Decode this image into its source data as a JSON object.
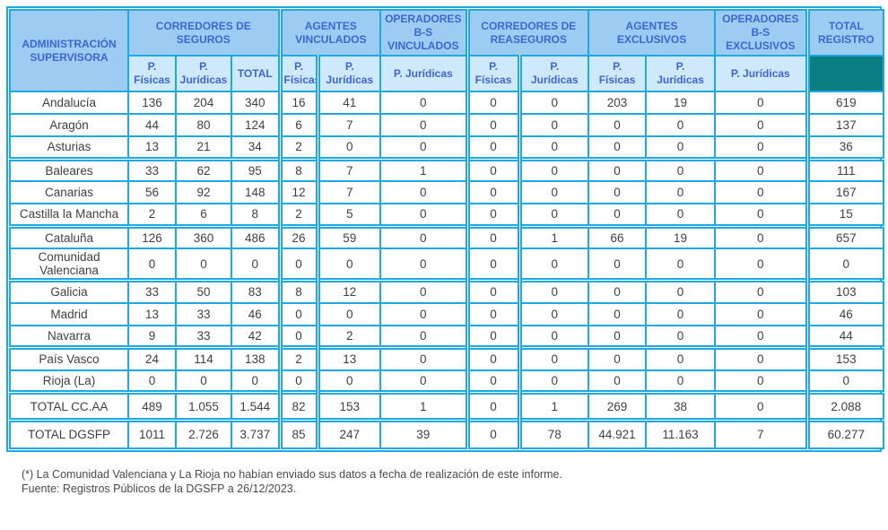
{
  "table": {
    "corner_label": "ADMINISTRACIÓN\nSUPERVISORA",
    "groups": [
      {
        "label": "CORREDORES DE\nSEGUROS",
        "cols": [
          "P.\nFísicas",
          "P.\nJurídicas",
          "TOTAL"
        ]
      },
      {
        "label": "AGENTES\nVINCULADOS",
        "cols": [
          "P.\nFísicas",
          "P.\nJurídicas"
        ]
      },
      {
        "label": "OPERADORES\nB-S\nVINCULADOS",
        "cols": [
          "P. Jurídicas"
        ]
      },
      {
        "label": "CORREDORES DE\nREASEGUROS",
        "cols": [
          "P.\nFísicas",
          "P.\nJurídicas"
        ]
      },
      {
        "label": "AGENTES\nEXCLUSIVOS",
        "cols": [
          "P.\nFísicas",
          "P.\nJurídicas"
        ]
      },
      {
        "label": "OPERADORES\nB-S\nEXCLUSIVOS",
        "cols": [
          "P. Jurídicas"
        ]
      },
      {
        "label": "TOTAL\nREGISTRO",
        "cols": []
      }
    ],
    "rows": [
      {
        "label": "Andalucía",
        "values": [
          "136",
          "204",
          "340",
          "16",
          "41",
          "0",
          "0",
          "0",
          "203",
          "19",
          "0",
          "619"
        ]
      },
      {
        "label": "Aragón",
        "values": [
          "44",
          "80",
          "124",
          "6",
          "7",
          "0",
          "0",
          "0",
          "0",
          "0",
          "0",
          "137"
        ]
      },
      {
        "label": "Asturias",
        "values": [
          "13",
          "21",
          "34",
          "2",
          "0",
          "0",
          "0",
          "0",
          "0",
          "0",
          "0",
          "36"
        ]
      },
      {
        "label": "Baleares",
        "values": [
          "33",
          "62",
          "95",
          "8",
          "7",
          "1",
          "0",
          "0",
          "0",
          "0",
          "0",
          "111"
        ]
      },
      {
        "label": "Canarias",
        "values": [
          "56",
          "92",
          "148",
          "12",
          "7",
          "0",
          "0",
          "0",
          "0",
          "0",
          "0",
          "167"
        ]
      },
      {
        "label": "Castilla la Mancha",
        "values": [
          "2",
          "6",
          "8",
          "2",
          "5",
          "0",
          "0",
          "0",
          "0",
          "0",
          "0",
          "15"
        ]
      },
      {
        "label": "Cataluña",
        "values": [
          "126",
          "360",
          "486",
          "26",
          "59",
          "0",
          "0",
          "1",
          "66",
          "19",
          "0",
          "657"
        ]
      },
      {
        "label": "Comunidad\nValenciana",
        "values": [
          "0",
          "0",
          "0",
          "0",
          "0",
          "0",
          "0",
          "0",
          "0",
          "0",
          "0",
          "0"
        ]
      },
      {
        "label": "Galicia",
        "values": [
          "33",
          "50",
          "83",
          "8",
          "12",
          "0",
          "0",
          "0",
          "0",
          "0",
          "0",
          "103"
        ]
      },
      {
        "label": "Madrid",
        "values": [
          "13",
          "33",
          "46",
          "0",
          "0",
          "0",
          "0",
          "0",
          "0",
          "0",
          "0",
          "46"
        ]
      },
      {
        "label": "Navarra",
        "values": [
          "9",
          "33",
          "42",
          "0",
          "2",
          "0",
          "0",
          "0",
          "0",
          "0",
          "0",
          "44"
        ]
      },
      {
        "label": "País Vasco",
        "values": [
          "24",
          "114",
          "138",
          "2",
          "13",
          "0",
          "0",
          "0",
          "0",
          "0",
          "0",
          "153"
        ]
      },
      {
        "label": "Rioja (La)",
        "values": [
          "0",
          "0",
          "0",
          "0",
          "0",
          "0",
          "0",
          "0",
          "0",
          "0",
          "0",
          "0"
        ]
      },
      {
        "label": "TOTAL CC.AA",
        "values": [
          "489",
          "1.055",
          "1.544",
          "82",
          "153",
          "1",
          "0",
          "1",
          "269",
          "38",
          "0",
          "2.088"
        ]
      },
      {
        "label": "TOTAL DGSFP",
        "values": [
          "1011",
          "2.726",
          "3.737",
          "85",
          "247",
          "39",
          "0",
          "78",
          "44.921",
          "11.163",
          "7",
          "60.277"
        ]
      }
    ]
  },
  "footnotes": {
    "note": "(*) La Comunidad Valenciana y La Rioja no habían enviado sus datos a fecha de realización de este informe.",
    "source": "Fuente: Registros Públicos de la DGSFP a 26/12/2023."
  },
  "colors": {
    "border_cyan": "#1FA9E2",
    "header_bg": "#9CCCF2",
    "subheader_bg": "#CFE9FC",
    "teal_cell": "#0B7E84",
    "header_text": "#3E66D3",
    "body_text": "#3F3F3F"
  }
}
